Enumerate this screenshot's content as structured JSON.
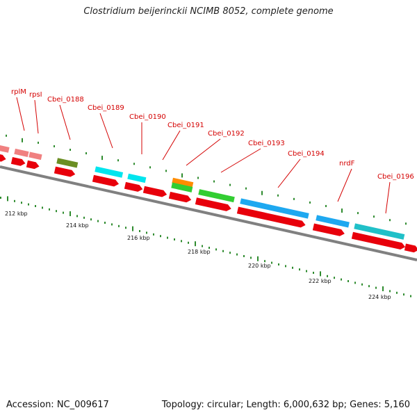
{
  "title": "Clostridium beijerinckii NCIMB 8052, complete genome",
  "footer": {
    "accession": "Accession: NC_009617",
    "summary": "Topology: circular; Length: 6,000,632 bp; Genes: 5,160"
  },
  "colors": {
    "cds": "#e8000b",
    "rrna_like": "#f08080",
    "olive": "#6b8e23",
    "cyan": "#00e5ee",
    "orange": "#ff8c00",
    "green": "#32cd32",
    "blue": "#1ea8f0",
    "teal": "#20c0c8",
    "label": "#d40000",
    "backbone": "#808080",
    "tick": "#2e8b2e"
  },
  "scale_labels": [
    "212 kbp",
    "214 kbp",
    "216 kbp",
    "218 kbp",
    "220 kbp",
    "222 kbp",
    "224 kbp"
  ],
  "gene_labels": [
    "rplM",
    "rpsI",
    "Cbei_0188",
    "Cbei_0189",
    "Cbei_0190",
    "Cbei_0191",
    "Cbei_0192",
    "Cbei_0193",
    "Cbei_0194",
    "nrdF",
    "Cbei_0196"
  ]
}
